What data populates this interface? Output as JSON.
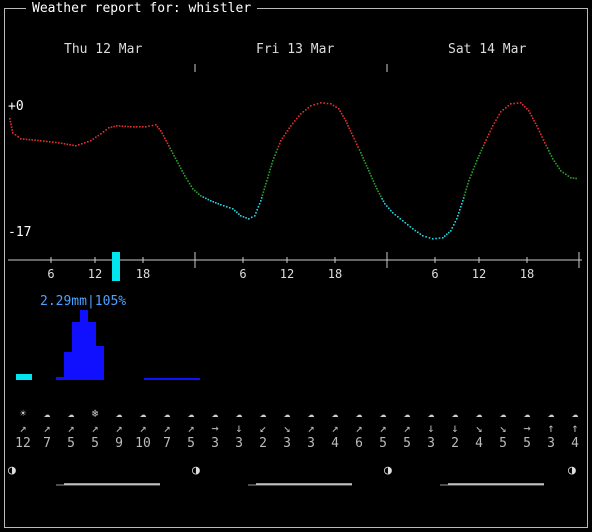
{
  "header": {
    "title": "Weather report for: whistler"
  },
  "days": [
    "Thu 12 Mar",
    "Fri 13 Mar",
    "Sat 14 Mar"
  ],
  "temperature": {
    "max_label": "+0",
    "min_label": "-17"
  },
  "hour_labels": [
    "6",
    "12",
    "18",
    "6",
    "12",
    "18",
    "6",
    "12",
    "18"
  ],
  "precipitation": {
    "label": "2.29mm|105%"
  },
  "wind": {
    "icons": [
      "☀",
      "☁",
      "☁",
      "❄",
      "☁",
      "☁",
      "☁",
      "☁",
      "☁",
      "☁",
      "☁",
      "☁",
      "☁",
      "☁",
      "☁",
      "☁",
      "☁",
      "☁",
      "☁",
      "☁",
      "☁",
      "☁",
      "☁",
      "☁"
    ],
    "arrows": [
      "↗",
      "↗",
      "↗",
      "↗",
      "↗",
      "↗",
      "↗",
      "↗",
      "→",
      "↓",
      "↙",
      "↘",
      "↗",
      "↗",
      "↗",
      "↗",
      "↗",
      "↓",
      "↓",
      "↘",
      "↘",
      "→",
      "↑",
      "↑"
    ],
    "speeds": [
      "12",
      "7",
      "5",
      "5",
      "9",
      "10",
      "7",
      "5",
      "3",
      "3",
      "2",
      "3",
      "3",
      "4",
      "6",
      "5",
      "5",
      "3",
      "2",
      "4",
      "5",
      "5",
      "3",
      "4"
    ]
  },
  "moon": {
    "phases": [
      "◑",
      "◑",
      "◑",
      "◑"
    ]
  },
  "colors": {
    "hot": "#e03030",
    "warm": "#2aa02a",
    "cold": "#2ad0e0",
    "rain": "#1010ff",
    "rain_light": "#00e5ee",
    "now": "#00e5ee"
  }
}
